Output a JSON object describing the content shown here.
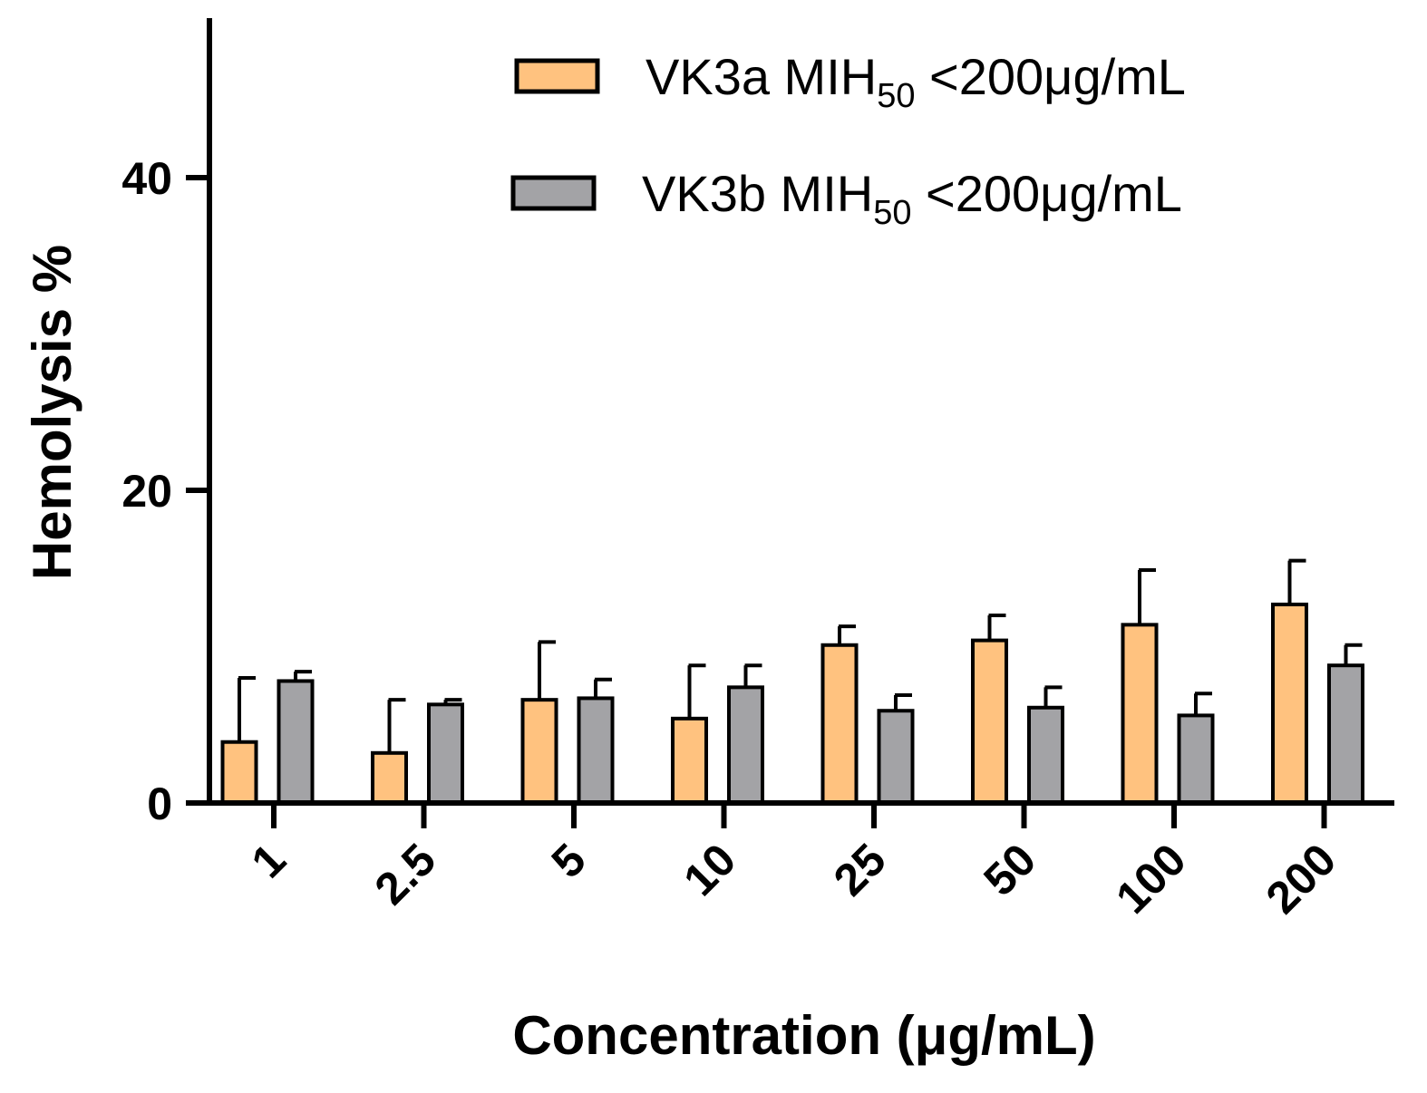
{
  "chart_data": {
    "type": "bar",
    "title": "",
    "xlabel": "Concentration (μg/mL)",
    "ylabel": "Hemolysis %",
    "ylim": [
      0,
      50
    ],
    "yticks": [
      0,
      20,
      40
    ],
    "categories": [
      "1",
      "2.5",
      "5",
      "10",
      "25",
      "50",
      "100",
      "200"
    ],
    "legend_position": "top-right",
    "series": [
      {
        "name": "VK3a MIH50 <200μg/mL",
        "legend_main": "VK3a MIH",
        "legend_sub": "50",
        "legend_tail": " <200μg/mL",
        "color": "#FFC27F",
        "values": [
          3.9,
          3.2,
          6.6,
          5.4,
          10.1,
          10.4,
          11.4,
          12.7
        ],
        "errors": [
          4.1,
          3.4,
          3.7,
          3.4,
          1.2,
          1.6,
          3.5,
          2.8
        ]
      },
      {
        "name": "VK3b MIH50 <200μg/mL",
        "legend_main": "VK3b MIH",
        "legend_sub": "50",
        "legend_tail": " <200μg/mL",
        "color": "#A3A3A6",
        "values": [
          7.8,
          6.3,
          6.7,
          7.4,
          5.9,
          6.1,
          5.6,
          8.8
        ],
        "errors": [
          0.6,
          0.3,
          1.2,
          1.4,
          1.0,
          1.3,
          1.4,
          1.3
        ]
      }
    ]
  },
  "colors": {
    "axis": "#000000",
    "bar_outline": "#000000"
  }
}
